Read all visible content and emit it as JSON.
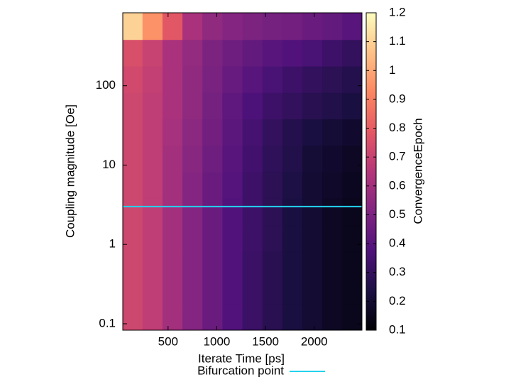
{
  "chart_data": {
    "type": "heatmap",
    "xlabel": "Iterate Time [ps]",
    "ylabel": "Coupling magnitude [Oe]",
    "colorbar_label": "ConvergenceEpoch",
    "colormap": "magma",
    "ylog": true,
    "x": [
      135,
      340,
      545,
      750,
      955,
      1160,
      1365,
      1570,
      1775,
      1980,
      2185,
      2390
    ],
    "y": [
      0.12,
      0.26,
      0.56,
      1.2,
      2.6,
      5.6,
      12,
      26,
      56,
      120,
      260,
      560
    ],
    "z": [
      [
        0.72,
        0.68,
        0.6,
        0.52,
        0.45,
        0.38,
        0.32,
        0.27,
        0.23,
        0.2,
        0.17,
        0.15
      ],
      [
        0.72,
        0.68,
        0.6,
        0.52,
        0.45,
        0.38,
        0.32,
        0.27,
        0.23,
        0.2,
        0.17,
        0.15
      ],
      [
        0.72,
        0.68,
        0.6,
        0.52,
        0.45,
        0.38,
        0.32,
        0.27,
        0.23,
        0.2,
        0.17,
        0.15
      ],
      [
        0.72,
        0.68,
        0.6,
        0.52,
        0.45,
        0.38,
        0.33,
        0.28,
        0.23,
        0.2,
        0.17,
        0.15
      ],
      [
        0.72,
        0.68,
        0.6,
        0.52,
        0.45,
        0.38,
        0.33,
        0.28,
        0.23,
        0.2,
        0.17,
        0.15
      ],
      [
        0.72,
        0.68,
        0.6,
        0.52,
        0.45,
        0.39,
        0.33,
        0.28,
        0.24,
        0.2,
        0.18,
        0.16
      ],
      [
        0.72,
        0.68,
        0.6,
        0.53,
        0.46,
        0.4,
        0.34,
        0.29,
        0.25,
        0.21,
        0.19,
        0.17
      ],
      [
        0.72,
        0.68,
        0.61,
        0.54,
        0.47,
        0.41,
        0.35,
        0.3,
        0.26,
        0.23,
        0.21,
        0.19
      ],
      [
        0.72,
        0.68,
        0.62,
        0.55,
        0.48,
        0.42,
        0.37,
        0.33,
        0.3,
        0.27,
        0.25,
        0.23
      ],
      [
        0.73,
        0.69,
        0.62,
        0.55,
        0.49,
        0.44,
        0.4,
        0.36,
        0.33,
        0.3,
        0.28,
        0.26
      ],
      [
        0.75,
        0.7,
        0.62,
        0.56,
        0.5,
        0.46,
        0.43,
        0.4,
        0.38,
        0.36,
        0.33,
        0.3
      ],
      [
        1.1,
        0.95,
        0.78,
        0.62,
        0.55,
        0.52,
        0.5,
        0.48,
        0.47,
        0.45,
        0.43,
        0.4
      ]
    ],
    "xlim": [
      35,
      2490
    ],
    "xticks": [
      500,
      1000,
      1500,
      2000
    ],
    "ylim": [
      0.083,
      830
    ],
    "yticks": [
      0.1,
      1,
      10,
      100
    ],
    "clim": [
      0.1,
      1.2
    ],
    "cticks": [
      0.1,
      0.2,
      0.3,
      0.4,
      0.5,
      0.6,
      0.7,
      0.8,
      0.9,
      1,
      1.1,
      1.2
    ],
    "hline": {
      "name": "Bifurcation point",
      "color": "#22d3ee",
      "value": 3
    }
  }
}
